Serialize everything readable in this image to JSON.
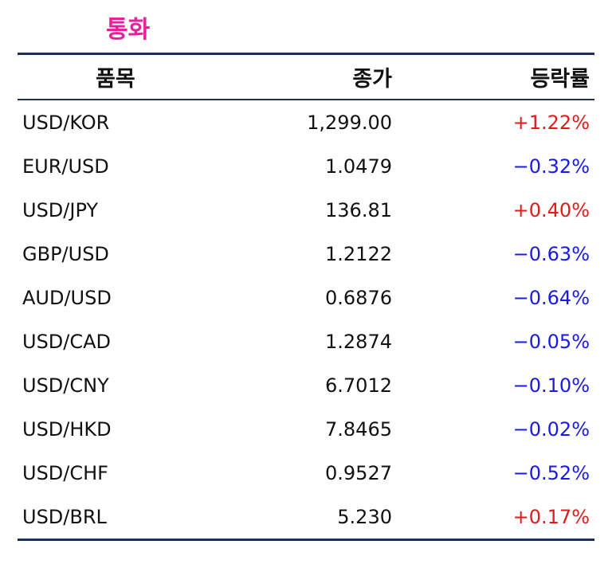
{
  "title": "통화",
  "colors": {
    "title": "#e8209a",
    "rule": "#1f2e55",
    "up": "#e01b1b",
    "down": "#1a1ae6"
  },
  "table": {
    "headers": {
      "name": "품목",
      "close": "종가",
      "change": "등락률"
    },
    "rows": [
      {
        "name": "USD/KOR",
        "close": "1,299.00",
        "change": "+1.22%",
        "direction": "up"
      },
      {
        "name": "EUR/USD",
        "close": "1.0479",
        "change": "−0.32%",
        "direction": "down"
      },
      {
        "name": "USD/JPY",
        "close": "136.81",
        "change": "+0.40%",
        "direction": "up"
      },
      {
        "name": "GBP/USD",
        "close": "1.2122",
        "change": "−0.63%",
        "direction": "down"
      },
      {
        "name": "AUD/USD",
        "close": "0.6876",
        "change": "−0.64%",
        "direction": "down"
      },
      {
        "name": "USD/CAD",
        "close": "1.2874",
        "change": "−0.05%",
        "direction": "down"
      },
      {
        "name": "USD/CNY",
        "close": "6.7012",
        "change": "−0.10%",
        "direction": "down"
      },
      {
        "name": "USD/HKD",
        "close": "7.8465",
        "change": "−0.02%",
        "direction": "down"
      },
      {
        "name": "USD/CHF",
        "close": "0.9527",
        "change": "−0.52%",
        "direction": "down"
      },
      {
        "name": "USD/BRL",
        "close": "5.230",
        "change": "+0.17%",
        "direction": "up"
      }
    ]
  }
}
